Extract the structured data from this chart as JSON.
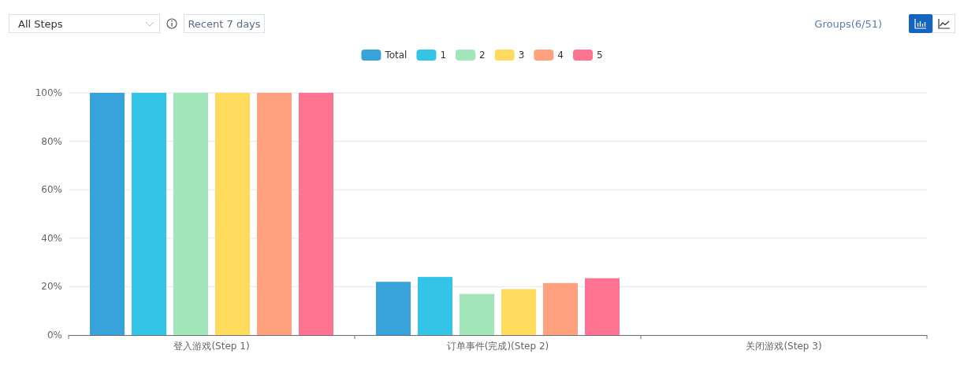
{
  "chart_data": {
    "type": "bar",
    "categories": [
      "登入游戏(Step 1)",
      "订单事件(完成)(Step 2)",
      "关闭游戏(Step 3)"
    ],
    "series": [
      {
        "name": "Total",
        "color": "#38a2da",
        "values": [
          100,
          22,
          0
        ]
      },
      {
        "name": "1",
        "color": "#33c4e8",
        "values": [
          100,
          24,
          0
        ]
      },
      {
        "name": "2",
        "color": "#a3e6b9",
        "values": [
          100,
          17,
          0
        ]
      },
      {
        "name": "3",
        "color": "#fedb5c",
        "values": [
          100,
          19,
          0
        ]
      },
      {
        "name": "4",
        "color": "#ffa07f",
        "values": [
          100,
          21.5,
          0
        ]
      },
      {
        "name": "5",
        "color": "#ff7392",
        "values": [
          100,
          23.5,
          0
        ]
      }
    ],
    "ylim": [
      0,
      100
    ],
    "yticks": [
      {
        "value": 0,
        "label": "0%"
      },
      {
        "value": 20,
        "label": "20%"
      },
      {
        "value": 40,
        "label": "40%"
      },
      {
        "value": 60,
        "label": "60%"
      },
      {
        "value": 80,
        "label": "80%"
      },
      {
        "value": 100,
        "label": "100%"
      }
    ],
    "grid": "y",
    "legend": "top",
    "annotations": [
      "All Steps",
      "Recent 7 days",
      "Groups(6/51)"
    ]
  }
}
